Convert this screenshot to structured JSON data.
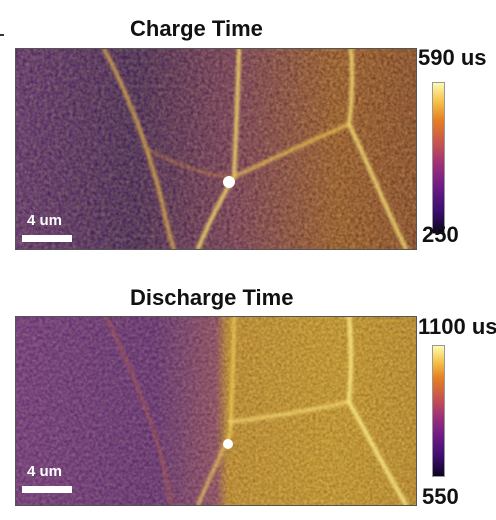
{
  "charge": {
    "title": "Charge Time",
    "scale_label": "4 um",
    "colorbar_max": "590 us",
    "colorbar_min": "250"
  },
  "discharge": {
    "title": "Discharge Time",
    "scale_label": "4 um",
    "colorbar_max": "1100 us",
    "colorbar_min": "550"
  },
  "colors": {
    "colormap_low": "#0d0221",
    "colormap_mid": "#9b2f7a",
    "colormap_high": "#fdfbb0"
  }
}
